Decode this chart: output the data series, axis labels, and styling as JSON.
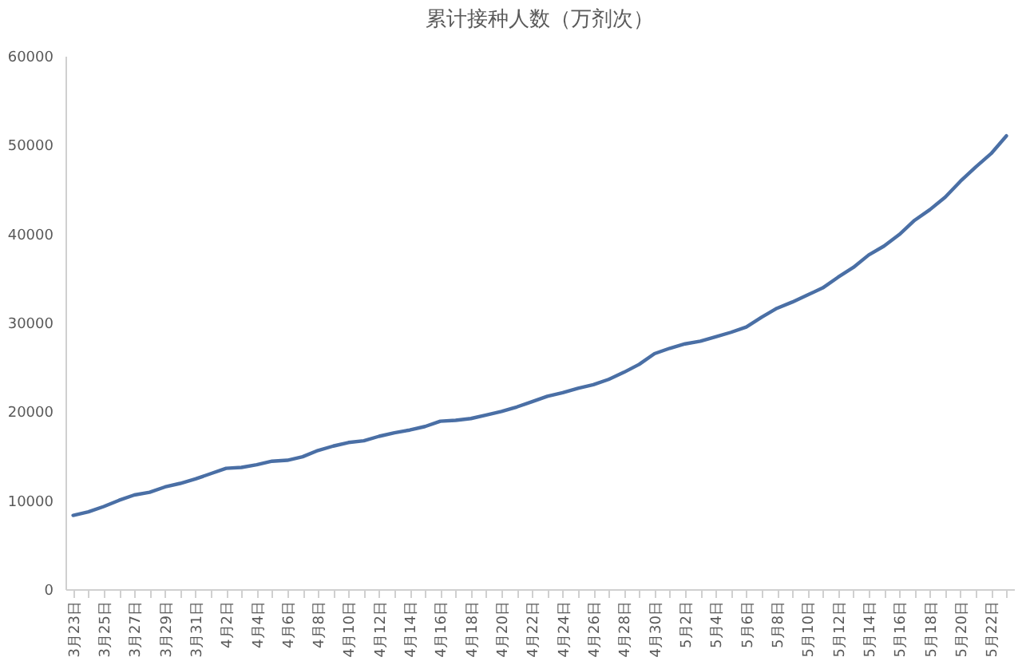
{
  "chart_data": {
    "type": "line",
    "title": "累计接种人数（万剂次）",
    "categories": [
      "3月23日",
      null,
      "3月25日",
      null,
      "3月27日",
      null,
      "3月29日",
      null,
      "3月31日",
      null,
      "4月2日",
      null,
      "4月4日",
      null,
      "4月6日",
      null,
      "4月8日",
      null,
      "4月10日",
      null,
      "4月12日",
      null,
      "4月14日",
      null,
      "4月16日",
      null,
      "4月18日",
      null,
      "4月20日",
      null,
      "4月22日",
      null,
      "4月24日",
      null,
      "4月26日",
      null,
      "4月28日",
      null,
      "4月30日",
      null,
      "5月2日",
      null,
      "5月4日",
      null,
      "5月6日",
      null,
      "5月8日",
      null,
      "5月10日",
      null,
      "5月12日",
      null,
      "5月14日",
      null,
      "5月16日",
      null,
      "5月18日",
      null,
      "5月20日",
      null,
      "5月22日",
      null
    ],
    "series": [
      {
        "color": "#4a6fa5",
        "values": [
          8300,
          8700,
          9300,
          10000,
          10600,
          10900,
          11500,
          11900,
          12400,
          13000,
          13600,
          13700,
          14000,
          14400,
          14500,
          14900,
          15600,
          16100,
          16500,
          16700,
          17200,
          17600,
          17900,
          18300,
          18900,
          19000,
          19200,
          19600,
          20000,
          20500,
          21100,
          21700,
          22100,
          22600,
          23000,
          23600,
          24400,
          25300,
          26500,
          27100,
          27600,
          27900,
          28400,
          28900,
          29500,
          30600,
          31600,
          32300,
          33100,
          33900,
          35100,
          36200,
          37600,
          38600,
          39900,
          41500,
          42700,
          44100,
          45900,
          47500,
          49000,
          51000
        ]
      }
    ],
    "ylim": [
      0,
      60000
    ],
    "yticks": [
      0,
      10000,
      20000,
      30000,
      40000,
      50000,
      60000
    ],
    "legend": false,
    "marker": "none",
    "line_style": "solid"
  }
}
